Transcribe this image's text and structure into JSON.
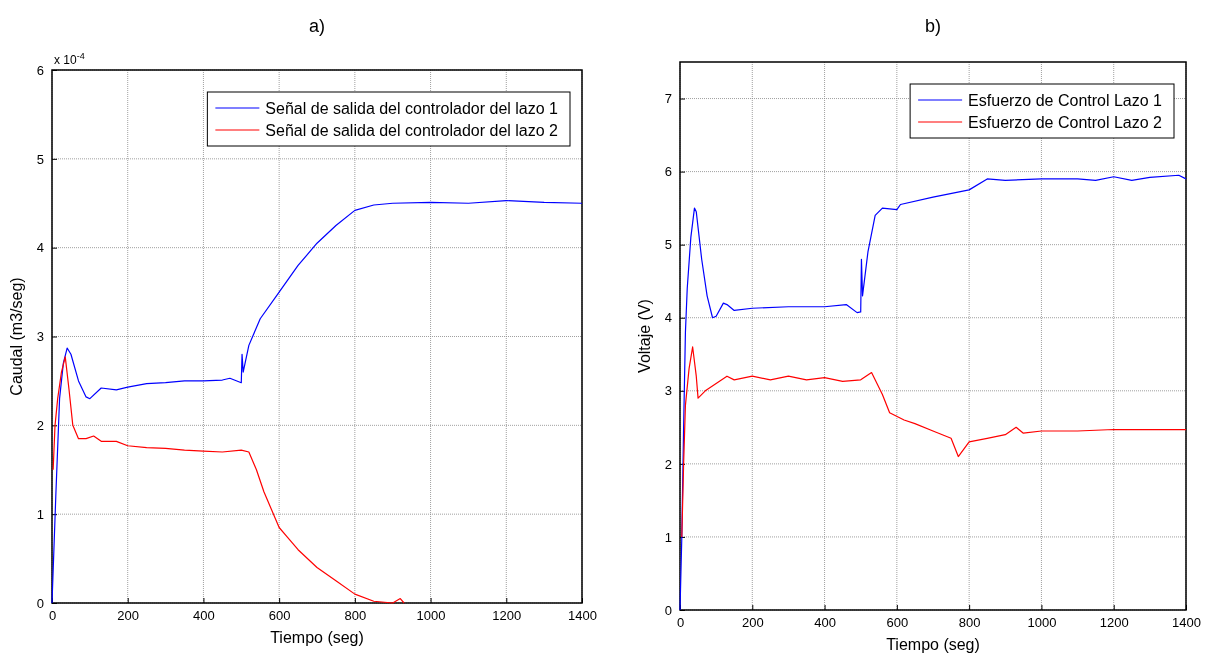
{
  "chart_data": [
    {
      "type": "line",
      "title": "a)",
      "xlabel": "Tiempo (seg)",
      "ylabel": "Caudal (m3/seg)",
      "annotations": [
        "x 10$^{-4}$"
      ],
      "xlim": [
        0,
        1400
      ],
      "xticks": [
        0,
        200,
        400,
        600,
        800,
        1000,
        1200,
        1400
      ],
      "ylim": [
        0,
        6
      ],
      "yticks": [
        0,
        1,
        2,
        3,
        4,
        5,
        6
      ],
      "grid": true,
      "legend": "top right",
      "series": [
        {
          "name": "Señal de salida del controlador del lazo 1",
          "color": "#0000ff",
          "x": [
            0,
            5,
            10,
            20,
            30,
            40,
            50,
            70,
            90,
            100,
            130,
            170,
            200,
            250,
            300,
            350,
            400,
            450,
            470,
            500,
            502,
            505,
            520,
            550,
            600,
            650,
            700,
            750,
            800,
            850,
            900,
            1000,
            1100,
            1200,
            1300,
            1400
          ],
          "values": [
            0,
            0.6,
            1.2,
            2.3,
            2.7,
            2.87,
            2.8,
            2.5,
            2.32,
            2.3,
            2.42,
            2.4,
            2.43,
            2.47,
            2.48,
            2.5,
            2.5,
            2.51,
            2.53,
            2.48,
            2.8,
            2.6,
            2.9,
            3.2,
            3.5,
            3.8,
            4.05,
            4.25,
            4.42,
            4.48,
            4.5,
            4.51,
            4.5,
            4.53,
            4.51,
            4.5
          ]
        },
        {
          "name": "Señal de salida del controlador del lazo 2",
          "color": "#ff0000",
          "x": [
            3,
            8,
            15,
            25,
            35,
            45,
            55,
            70,
            90,
            110,
            130,
            170,
            200,
            250,
            300,
            350,
            400,
            450,
            500,
            520,
            540,
            560,
            580,
            600,
            620,
            650,
            700,
            750,
            800,
            850,
            900,
            920,
            930
          ],
          "values": [
            1.5,
            2,
            2.3,
            2.6,
            2.77,
            2.4,
            2,
            1.85,
            1.85,
            1.88,
            1.82,
            1.82,
            1.77,
            1.75,
            1.74,
            1.72,
            1.71,
            1.7,
            1.72,
            1.7,
            1.5,
            1.25,
            1.05,
            0.85,
            0.75,
            0.6,
            0.4,
            0.25,
            0.1,
            0.02,
            0,
            0.05,
            0
          ]
        }
      ]
    },
    {
      "type": "line",
      "title": "b)",
      "xlabel": "Tiempo (seg)",
      "ylabel": "Voltaje (V)",
      "xlim": [
        0,
        1400
      ],
      "xticks": [
        0,
        200,
        400,
        600,
        800,
        1000,
        1200,
        1400
      ],
      "ylim": [
        0,
        7.5
      ],
      "yticks": [
        0,
        1,
        2,
        3,
        4,
        5,
        6,
        7
      ],
      "grid": true,
      "legend": "top right",
      "series": [
        {
          "name": "Esfuerzo de Control Lazo 1",
          "color": "#0000ff",
          "x": [
            0,
            5,
            10,
            15,
            20,
            30,
            40,
            45,
            60,
            75,
            90,
            100,
            120,
            130,
            150,
            200,
            300,
            400,
            460,
            490,
            500,
            502,
            505,
            520,
            540,
            560,
            600,
            610,
            700,
            800,
            850,
            900,
            1000,
            1100,
            1150,
            1200,
            1250,
            1300,
            1380,
            1400
          ],
          "values": [
            0,
            1,
            2.5,
            3.8,
            4.4,
            5.1,
            5.5,
            5.45,
            4.8,
            4.3,
            4.0,
            4.02,
            4.2,
            4.18,
            4.1,
            4.13,
            4.15,
            4.15,
            4.18,
            4.07,
            4.08,
            4.8,
            4.3,
            4.9,
            5.4,
            5.5,
            5.48,
            5.55,
            5.65,
            5.75,
            5.9,
            5.88,
            5.9,
            5.9,
            5.88,
            5.93,
            5.88,
            5.92,
            5.95,
            5.9
          ]
        },
        {
          "name": "Esfuerzo de Control Lazo 2",
          "color": "#ff0000",
          "x": [
            5,
            10,
            15,
            25,
            35,
            45,
            50,
            70,
            100,
            130,
            150,
            200,
            250,
            300,
            350,
            400,
            450,
            500,
            530,
            560,
            580,
            620,
            650,
            700,
            750,
            770,
            800,
            850,
            900,
            930,
            950,
            1000,
            1100,
            1200,
            1400
          ],
          "values": [
            1,
            2,
            2.8,
            3.3,
            3.6,
            3.2,
            2.9,
            3,
            3.1,
            3.2,
            3.15,
            3.2,
            3.15,
            3.2,
            3.15,
            3.18,
            3.13,
            3.15,
            3.25,
            2.95,
            2.7,
            2.6,
            2.55,
            2.45,
            2.35,
            2.1,
            2.3,
            2.35,
            2.4,
            2.5,
            2.42,
            2.45,
            2.45,
            2.47,
            2.47
          ]
        }
      ]
    }
  ]
}
